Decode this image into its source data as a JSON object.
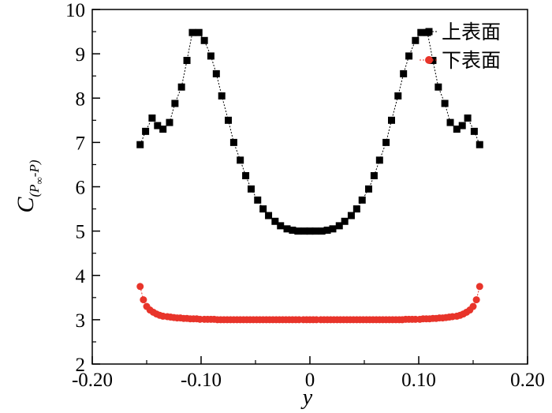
{
  "chart_data": {
    "type": "scatter",
    "xlabel": "y",
    "ylabel": {
      "main": "C",
      "subscript": "(P",
      "sub_infinity": "∞",
      "subscript_tail": "-P)"
    },
    "xlim": [
      -0.2,
      0.2
    ],
    "ylim": [
      2,
      10
    ],
    "xticks": [
      -0.2,
      -0.1,
      0,
      0.1,
      0.2
    ],
    "xtick_labels": [
      "-0.20",
      "-0.10",
      "0",
      "0.10",
      "0.20"
    ],
    "yticks": [
      2,
      3,
      4,
      5,
      6,
      7,
      8,
      9,
      10
    ],
    "ytick_labels": [
      "2",
      "3",
      "4",
      "5",
      "6",
      "7",
      "8",
      "9",
      "10"
    ],
    "grid": false,
    "legend_position": "top-right",
    "series": [
      {
        "name": "上表面",
        "color": "#000000",
        "marker": "square",
        "x": [
          -0.156,
          -0.151,
          -0.145,
          -0.14,
          -0.135,
          -0.129,
          -0.124,
          -0.118,
          -0.113,
          -0.108,
          -0.102,
          -0.097,
          -0.091,
          -0.086,
          -0.081,
          -0.075,
          -0.07,
          -0.064,
          -0.059,
          -0.054,
          -0.048,
          -0.043,
          -0.038,
          -0.032,
          -0.027,
          -0.021,
          -0.016,
          -0.011,
          -0.005,
          0,
          0.005,
          0.011,
          0.016,
          0.021,
          0.027,
          0.032,
          0.038,
          0.043,
          0.048,
          0.054,
          0.059,
          0.064,
          0.07,
          0.075,
          0.081,
          0.086,
          0.091,
          0.097,
          0.102,
          0.108,
          0.113,
          0.118,
          0.124,
          0.129,
          0.135,
          0.14,
          0.145,
          0.151,
          0.156
        ],
        "y": [
          6.95,
          7.25,
          7.55,
          7.38,
          7.3,
          7.45,
          7.88,
          8.25,
          8.85,
          9.48,
          9.48,
          9.3,
          8.95,
          8.55,
          8.05,
          7.5,
          7.0,
          6.6,
          6.25,
          5.95,
          5.7,
          5.5,
          5.35,
          5.22,
          5.12,
          5.05,
          5.02,
          5.0,
          5.0,
          5.0,
          5.0,
          5.0,
          5.02,
          5.05,
          5.12,
          5.22,
          5.35,
          5.5,
          5.7,
          5.95,
          6.25,
          6.6,
          7.0,
          7.5,
          8.05,
          8.55,
          8.95,
          9.3,
          9.48,
          9.48,
          8.85,
          8.25,
          7.88,
          7.45,
          7.3,
          7.38,
          7.55,
          7.25,
          6.95
        ]
      },
      {
        "name": "下表面",
        "color": "#e8342a",
        "marker": "circle",
        "x": [
          -0.156,
          -0.153,
          -0.15,
          -0.147,
          -0.144,
          -0.141,
          -0.138,
          -0.135,
          -0.131,
          -0.128,
          -0.125,
          -0.122,
          -0.119,
          -0.116,
          -0.113,
          -0.11,
          -0.107,
          -0.104,
          -0.101,
          -0.097,
          -0.094,
          -0.091,
          -0.088,
          -0.085,
          -0.082,
          -0.079,
          -0.076,
          -0.073,
          -0.07,
          -0.067,
          -0.064,
          -0.061,
          -0.058,
          -0.055,
          -0.052,
          -0.049,
          -0.046,
          -0.043,
          -0.04,
          -0.037,
          -0.034,
          -0.031,
          -0.028,
          -0.025,
          -0.022,
          -0.019,
          -0.016,
          -0.013,
          -0.01,
          -0.006,
          -0.003,
          0,
          0.003,
          0.006,
          0.01,
          0.013,
          0.016,
          0.019,
          0.022,
          0.025,
          0.028,
          0.031,
          0.034,
          0.037,
          0.04,
          0.043,
          0.046,
          0.049,
          0.052,
          0.055,
          0.058,
          0.061,
          0.064,
          0.067,
          0.07,
          0.073,
          0.076,
          0.079,
          0.082,
          0.085,
          0.088,
          0.091,
          0.094,
          0.097,
          0.101,
          0.104,
          0.107,
          0.11,
          0.113,
          0.116,
          0.119,
          0.122,
          0.125,
          0.128,
          0.131,
          0.135,
          0.138,
          0.141,
          0.144,
          0.147,
          0.15,
          0.153,
          0.156
        ],
        "y": [
          3.75,
          3.45,
          3.3,
          3.22,
          3.17,
          3.13,
          3.1,
          3.08,
          3.07,
          3.06,
          3.05,
          3.04,
          3.04,
          3.03,
          3.03,
          3.02,
          3.02,
          3.02,
          3.01,
          3.01,
          3.01,
          3.01,
          3.01,
          3.0,
          3.0,
          3.0,
          3.0,
          3.0,
          3.0,
          3.0,
          3.0,
          3.0,
          3.0,
          3.0,
          3.0,
          3.0,
          3.0,
          3.0,
          3.0,
          3.0,
          3.0,
          3.0,
          3.0,
          3.0,
          3.0,
          3.0,
          3.0,
          3.0,
          3.0,
          3.0,
          3.0,
          3.0,
          3.0,
          3.0,
          3.0,
          3.0,
          3.0,
          3.0,
          3.0,
          3.0,
          3.0,
          3.0,
          3.0,
          3.0,
          3.0,
          3.0,
          3.0,
          3.0,
          3.0,
          3.0,
          3.0,
          3.0,
          3.0,
          3.0,
          3.0,
          3.0,
          3.0,
          3.0,
          3.0,
          3.0,
          3.01,
          3.01,
          3.01,
          3.01,
          3.01,
          3.02,
          3.02,
          3.02,
          3.03,
          3.03,
          3.04,
          3.04,
          3.05,
          3.06,
          3.07,
          3.08,
          3.1,
          3.13,
          3.17,
          3.22,
          3.3,
          3.45,
          3.75
        ]
      }
    ]
  }
}
